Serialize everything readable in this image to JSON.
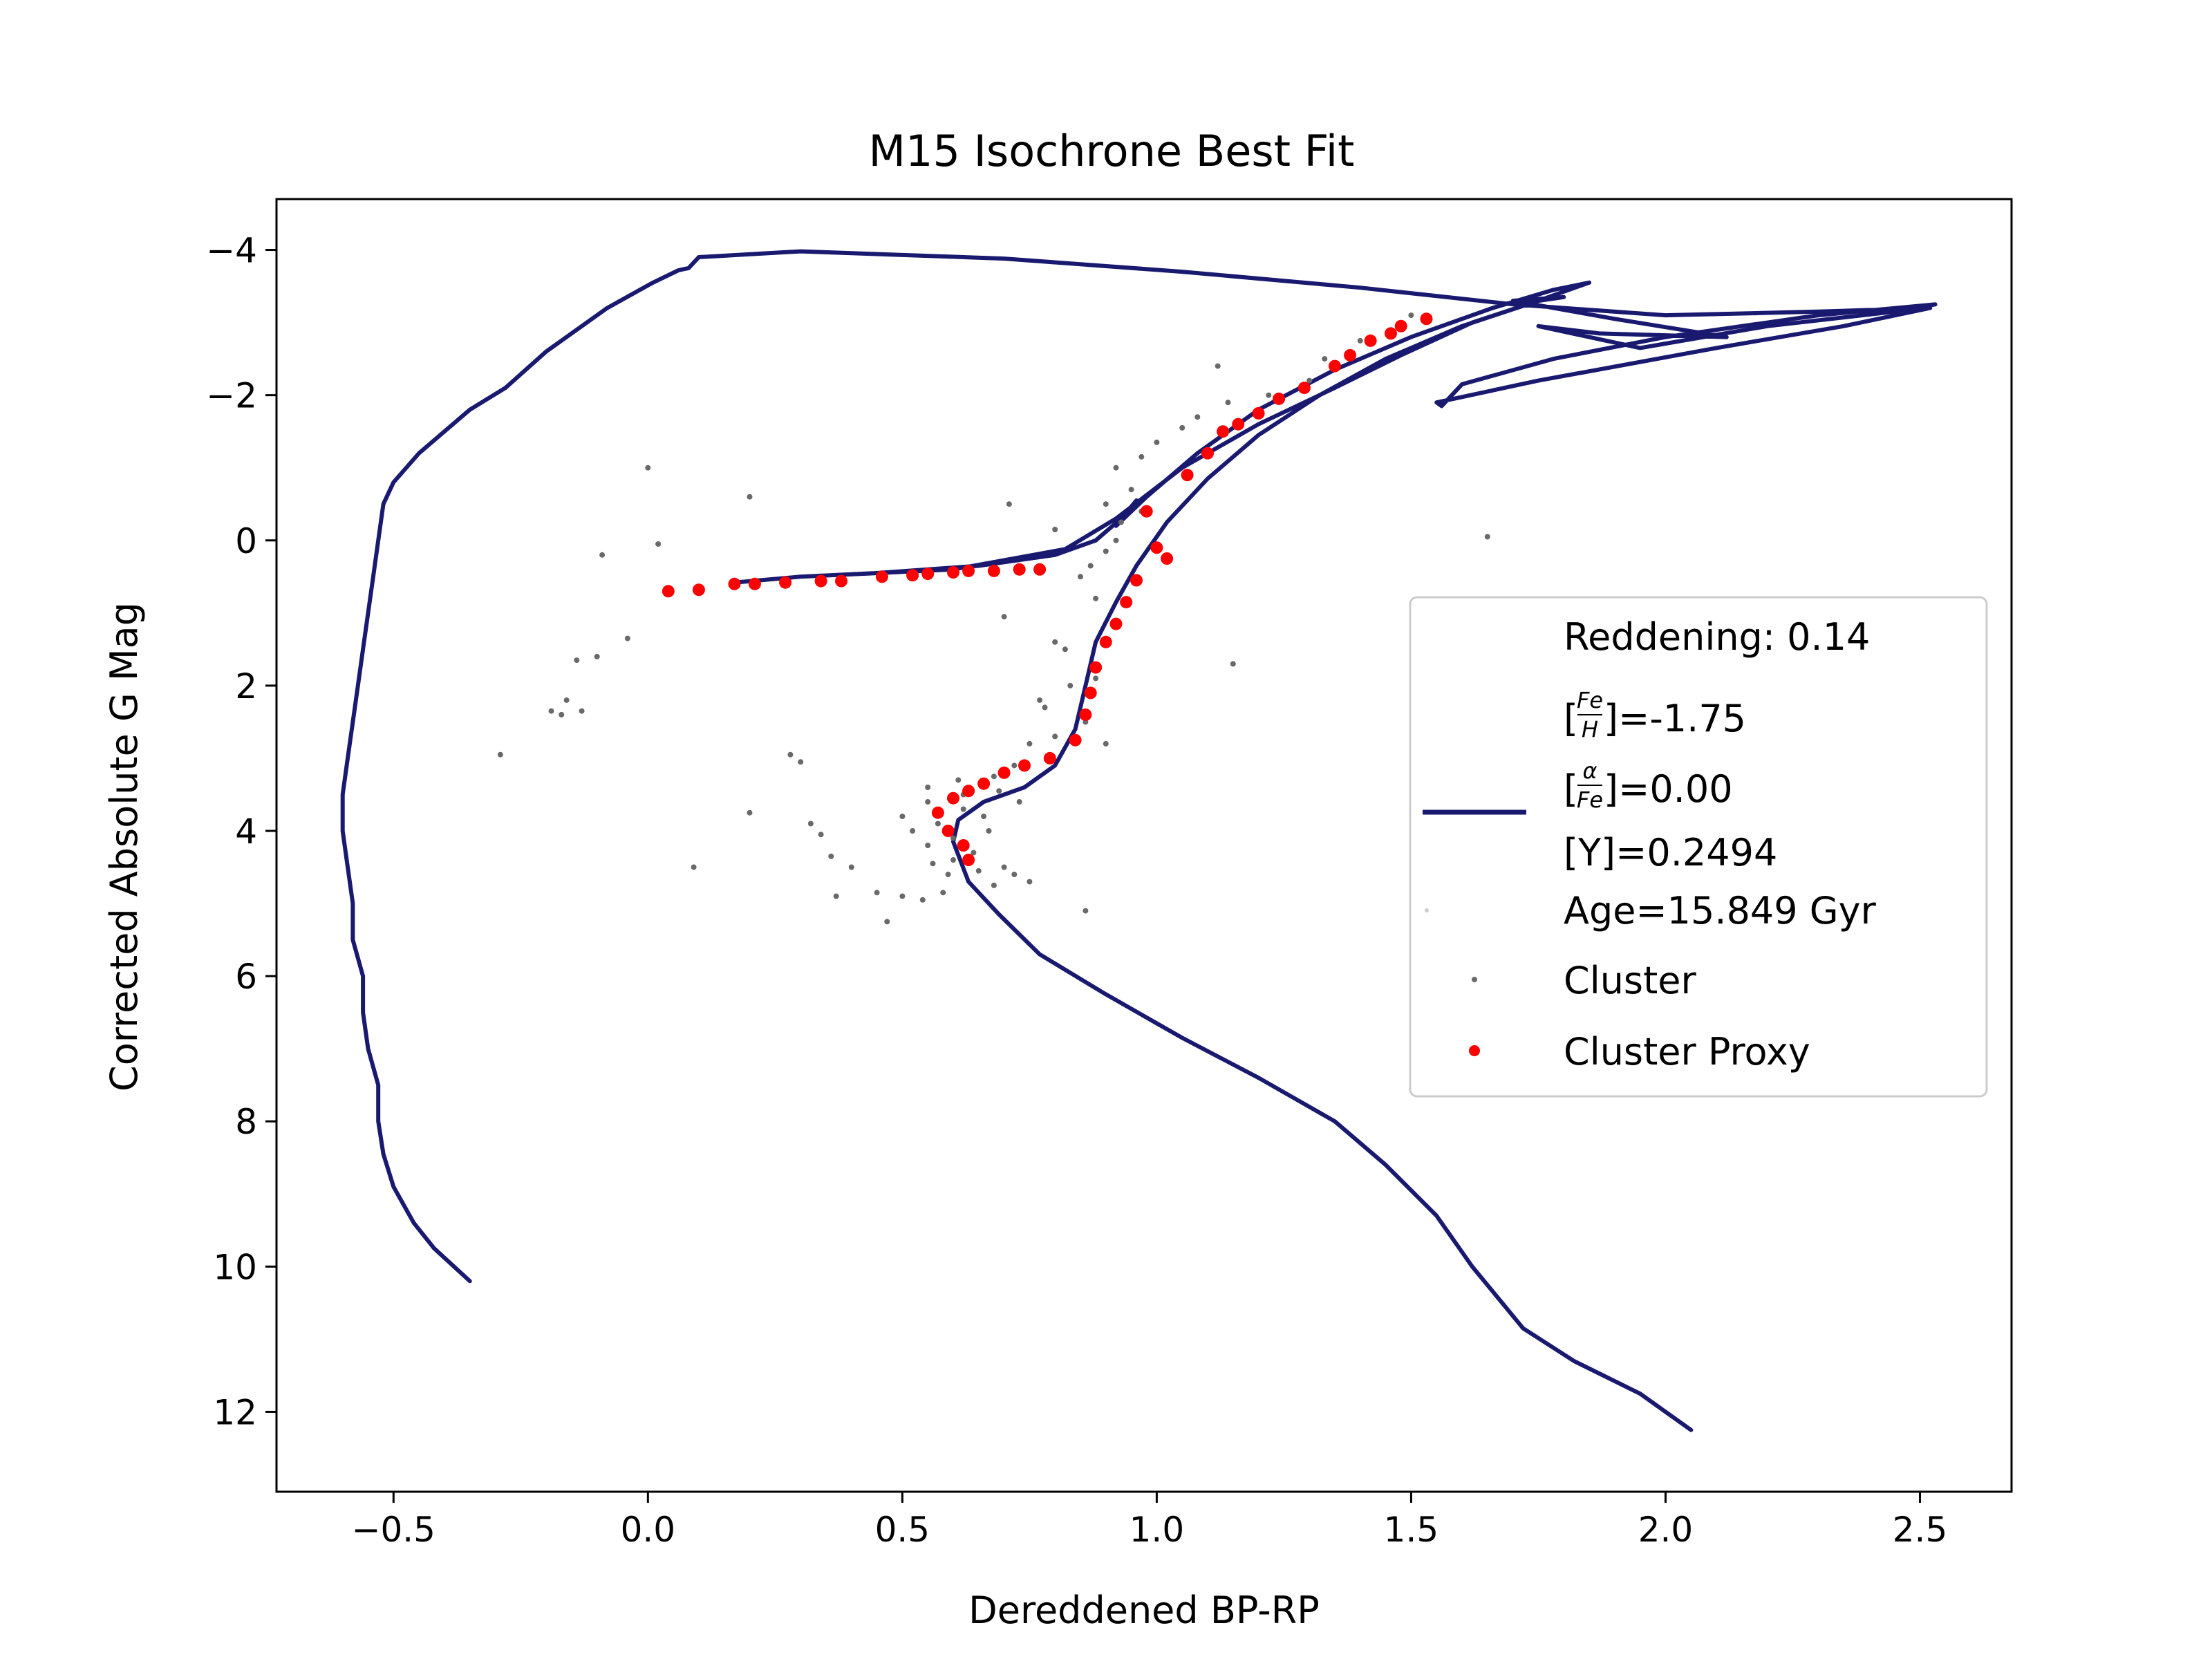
{
  "chart_data": {
    "type": "scatter",
    "title": "M15 Isochrone Best Fit",
    "xlabel": "Dereddened BP-RP",
    "ylabel": "Corrected Absolute G Mag",
    "xlim": [
      -0.73,
      2.68
    ],
    "ylim": [
      13.1,
      -4.7
    ],
    "y_inverted": true,
    "x_ticks": [
      -0.5,
      0.0,
      0.5,
      1.0,
      1.5,
      2.0,
      2.5
    ],
    "x_tick_labels": [
      "−0.5",
      "0.0",
      "0.5",
      "1.0",
      "1.5",
      "2.0",
      "2.5"
    ],
    "y_ticks": [
      -4,
      -2,
      0,
      2,
      4,
      6,
      8,
      10,
      12
    ],
    "y_tick_labels": [
      "−4",
      "−2",
      "0",
      "2",
      "4",
      "6",
      "8",
      "10",
      "12"
    ],
    "legend": {
      "placement": "right",
      "reddening": "Reddening: 0.14",
      "feh_value": "]=-1.75",
      "feh_num": "Fe",
      "feh_den": "H",
      "alpha_value": "]=0.00",
      "alpha_num": "α",
      "alpha_den": "Fe",
      "helium": "[Y]=0.2494",
      "age": "Age=15.849 Gyr",
      "cluster_label": "Cluster",
      "proxy_label": "Cluster Proxy"
    },
    "colors": {
      "isochrone": "#191970",
      "cluster": "#696969",
      "proxy": "#ff0000"
    },
    "series": [
      {
        "name": "isochrone",
        "kind": "line",
        "points": [
          [
            2.05,
            12.25
          ],
          [
            1.95,
            11.75
          ],
          [
            1.82,
            11.3
          ],
          [
            1.72,
            10.85
          ],
          [
            1.62,
            10.0
          ],
          [
            1.55,
            9.3
          ],
          [
            1.45,
            8.6
          ],
          [
            1.35,
            8.0
          ],
          [
            1.2,
            7.4
          ],
          [
            1.05,
            6.85
          ],
          [
            0.9,
            6.25
          ],
          [
            0.77,
            5.7
          ],
          [
            0.69,
            5.15
          ],
          [
            0.63,
            4.7
          ],
          [
            0.6,
            4.15
          ],
          [
            0.61,
            3.85
          ],
          [
            0.66,
            3.6
          ],
          [
            0.74,
            3.4
          ],
          [
            0.8,
            3.1
          ],
          [
            0.84,
            2.6
          ],
          [
            0.86,
            2.0
          ],
          [
            0.88,
            1.4
          ],
          [
            0.92,
            0.85
          ],
          [
            0.96,
            0.35
          ],
          [
            1.02,
            -0.25
          ],
          [
            1.1,
            -0.85
          ],
          [
            1.2,
            -1.45
          ],
          [
            1.32,
            -2.0
          ],
          [
            1.45,
            -2.5
          ],
          [
            1.6,
            -2.95
          ],
          [
            1.75,
            -3.3
          ],
          [
            1.85,
            -3.55
          ],
          [
            1.78,
            -3.45
          ],
          [
            1.66,
            -3.2
          ],
          [
            1.5,
            -2.8
          ],
          [
            1.35,
            -2.35
          ],
          [
            1.2,
            -1.8
          ],
          [
            1.08,
            -1.2
          ],
          [
            0.98,
            -0.6
          ],
          [
            0.92,
            -0.2
          ],
          [
            0.96,
            -0.55
          ],
          [
            0.93,
            -0.3
          ],
          [
            0.88,
            0.0
          ],
          [
            0.8,
            0.2
          ],
          [
            0.65,
            0.35
          ],
          [
            0.45,
            0.45
          ],
          [
            0.3,
            0.5
          ],
          [
            0.17,
            0.58
          ],
          [
            0.3,
            0.5
          ],
          [
            0.6,
            0.4
          ],
          [
            0.82,
            0.12
          ],
          [
            0.92,
            -0.3
          ],
          [
            1.05,
            -1.0
          ],
          [
            1.2,
            -1.6
          ],
          [
            1.35,
            -2.1
          ],
          [
            1.48,
            -2.55
          ],
          [
            1.62,
            -3.0
          ],
          [
            1.75,
            -3.3
          ],
          [
            1.8,
            -3.35
          ],
          [
            1.7,
            -3.3
          ],
          [
            1.9,
            -3.05
          ],
          [
            2.12,
            -2.8
          ],
          [
            1.87,
            -2.85
          ],
          [
            1.75,
            -2.95
          ],
          [
            1.95,
            -2.65
          ],
          [
            2.2,
            -2.95
          ],
          [
            2.45,
            -3.15
          ],
          [
            2.53,
            -3.25
          ],
          [
            2.3,
            -3.1
          ],
          [
            2.0,
            -2.8
          ],
          [
            1.78,
            -2.5
          ],
          [
            1.6,
            -2.15
          ],
          [
            1.56,
            -1.85
          ],
          [
            1.55,
            -1.9
          ],
          [
            1.75,
            -2.2
          ],
          [
            2.1,
            -2.65
          ],
          [
            2.35,
            -2.95
          ],
          [
            2.52,
            -3.2
          ],
          [
            2.3,
            -3.15
          ],
          [
            2.0,
            -3.1
          ],
          [
            1.7,
            -3.25
          ],
          [
            1.4,
            -3.48
          ],
          [
            1.05,
            -3.7
          ],
          [
            0.7,
            -3.88
          ],
          [
            0.3,
            -3.98
          ],
          [
            0.1,
            -3.9
          ],
          [
            0.08,
            -3.75
          ],
          [
            0.06,
            -3.72
          ],
          [
            0.01,
            -3.55
          ],
          [
            -0.08,
            -3.2
          ],
          [
            -0.2,
            -2.6
          ],
          [
            -0.28,
            -2.1
          ],
          [
            -0.35,
            -1.8
          ],
          [
            -0.45,
            -1.2
          ],
          [
            -0.5,
            -0.8
          ],
          [
            -0.52,
            -0.5
          ],
          [
            -0.53,
            0.0
          ],
          [
            -0.54,
            0.5
          ],
          [
            -0.55,
            1.0
          ],
          [
            -0.56,
            1.5
          ],
          [
            -0.57,
            2.0
          ],
          [
            -0.58,
            2.5
          ],
          [
            -0.59,
            3.0
          ],
          [
            -0.6,
            3.5
          ],
          [
            -0.6,
            4.0
          ],
          [
            -0.59,
            4.5
          ],
          [
            -0.58,
            5.0
          ],
          [
            -0.58,
            5.5
          ],
          [
            -0.56,
            6.0
          ],
          [
            -0.56,
            6.5
          ],
          [
            -0.55,
            7.0
          ],
          [
            -0.53,
            7.5
          ],
          [
            -0.53,
            8.0
          ],
          [
            -0.52,
            8.45
          ],
          [
            -0.5,
            8.9
          ],
          [
            -0.46,
            9.4
          ],
          [
            -0.42,
            9.75
          ],
          [
            -0.35,
            10.2
          ]
        ]
      },
      {
        "name": "Cluster",
        "kind": "points",
        "points": [
          [
            0.0,
            -1.0
          ],
          [
            0.2,
            -0.6
          ],
          [
            -0.09,
            0.2
          ],
          [
            0.02,
            0.05
          ],
          [
            0.71,
            -0.5
          ],
          [
            0.8,
            -0.15
          ],
          [
            0.92,
            -1.0
          ],
          [
            0.97,
            -1.15
          ],
          [
            0.9,
            -0.5
          ],
          [
            0.95,
            -0.7
          ],
          [
            1.0,
            -1.35
          ],
          [
            1.05,
            -1.55
          ],
          [
            1.08,
            -1.7
          ],
          [
            1.12,
            -2.4
          ],
          [
            1.14,
            -1.9
          ],
          [
            1.22,
            -2.0
          ],
          [
            1.3,
            -2.2
          ],
          [
            1.33,
            -2.5
          ],
          [
            1.4,
            -2.75
          ],
          [
            1.5,
            -3.1
          ],
          [
            1.65,
            -0.05
          ],
          [
            1.15,
            1.7
          ],
          [
            0.7,
            1.05
          ],
          [
            0.8,
            1.4
          ],
          [
            0.85,
            0.5
          ],
          [
            0.88,
            0.8
          ],
          [
            0.82,
            1.5
          ],
          [
            0.83,
            2.0
          ],
          [
            0.86,
            2.5
          ],
          [
            0.78,
            2.3
          ],
          [
            0.75,
            2.8
          ],
          [
            0.72,
            3.1
          ],
          [
            0.68,
            3.25
          ],
          [
            0.62,
            3.5
          ],
          [
            0.55,
            3.6
          ],
          [
            0.5,
            3.8
          ],
          [
            0.52,
            4.0
          ],
          [
            0.55,
            4.2
          ],
          [
            0.6,
            4.4
          ],
          [
            0.65,
            4.55
          ],
          [
            0.68,
            4.75
          ],
          [
            0.7,
            4.5
          ],
          [
            0.58,
            4.85
          ],
          [
            0.54,
            4.95
          ],
          [
            0.5,
            4.9
          ],
          [
            0.45,
            4.85
          ],
          [
            0.47,
            5.25
          ],
          [
            0.37,
            4.9
          ],
          [
            0.4,
            4.5
          ],
          [
            0.36,
            4.35
          ],
          [
            0.34,
            4.05
          ],
          [
            0.32,
            3.9
          ],
          [
            0.2,
            3.75
          ],
          [
            0.3,
            3.05
          ],
          [
            0.28,
            2.95
          ],
          [
            0.09,
            4.5
          ],
          [
            -0.29,
            2.95
          ],
          [
            -0.19,
            2.35
          ],
          [
            -0.16,
            2.2
          ],
          [
            -0.13,
            2.35
          ],
          [
            -0.17,
            2.4
          ],
          [
            -0.04,
            1.35
          ],
          [
            -0.1,
            1.6
          ],
          [
            -0.14,
            1.65
          ],
          [
            0.55,
            3.4
          ],
          [
            0.57,
            3.9
          ],
          [
            0.6,
            4.1
          ],
          [
            0.62,
            3.7
          ],
          [
            0.64,
            4.3
          ],
          [
            0.67,
            4.0
          ],
          [
            0.72,
            4.6
          ],
          [
            0.75,
            4.7
          ],
          [
            0.86,
            5.1
          ],
          [
            0.9,
            2.8
          ],
          [
            0.8,
            2.7
          ],
          [
            0.77,
            2.2
          ],
          [
            0.88,
            1.9
          ],
          [
            0.92,
            0.0
          ],
          [
            0.9,
            0.15
          ],
          [
            0.87,
            0.35
          ],
          [
            0.93,
            -0.25
          ],
          [
            0.97,
            -0.4
          ],
          [
            0.66,
            3.8
          ],
          [
            0.59,
            4.6
          ],
          [
            0.61,
            3.3
          ],
          [
            0.69,
            3.45
          ],
          [
            0.73,
            3.6
          ],
          [
            0.56,
            4.45
          ]
        ]
      },
      {
        "name": "Cluster Proxy",
        "kind": "points",
        "points": [
          [
            0.04,
            0.7
          ],
          [
            0.1,
            0.68
          ],
          [
            0.17,
            0.6
          ],
          [
            0.21,
            0.6
          ],
          [
            0.27,
            0.58
          ],
          [
            0.34,
            0.56
          ],
          [
            0.38,
            0.56
          ],
          [
            0.46,
            0.5
          ],
          [
            0.52,
            0.48
          ],
          [
            0.55,
            0.46
          ],
          [
            0.6,
            0.44
          ],
          [
            0.63,
            0.42
          ],
          [
            0.68,
            0.42
          ],
          [
            0.73,
            0.4
          ],
          [
            0.77,
            0.4
          ],
          [
            1.02,
            0.25
          ],
          [
            1.0,
            0.1
          ],
          [
            0.98,
            -0.4
          ],
          [
            1.06,
            -0.9
          ],
          [
            1.1,
            -1.2
          ],
          [
            1.13,
            -1.5
          ],
          [
            1.16,
            -1.6
          ],
          [
            1.2,
            -1.75
          ],
          [
            1.24,
            -1.95
          ],
          [
            1.29,
            -2.1
          ],
          [
            1.35,
            -2.4
          ],
          [
            1.38,
            -2.55
          ],
          [
            1.42,
            -2.75
          ],
          [
            1.48,
            -2.95
          ],
          [
            1.53,
            -3.05
          ],
          [
            1.46,
            -2.85
          ],
          [
            0.96,
            0.55
          ],
          [
            0.94,
            0.85
          ],
          [
            0.92,
            1.15
          ],
          [
            0.9,
            1.4
          ],
          [
            0.88,
            1.75
          ],
          [
            0.87,
            2.1
          ],
          [
            0.86,
            2.4
          ],
          [
            0.84,
            2.75
          ],
          [
            0.79,
            3.0
          ],
          [
            0.74,
            3.1
          ],
          [
            0.7,
            3.2
          ],
          [
            0.66,
            3.35
          ],
          [
            0.63,
            3.45
          ],
          [
            0.6,
            3.55
          ],
          [
            0.57,
            3.75
          ],
          [
            0.59,
            4.0
          ],
          [
            0.62,
            4.2
          ],
          [
            0.63,
            4.4
          ]
        ]
      }
    ]
  }
}
